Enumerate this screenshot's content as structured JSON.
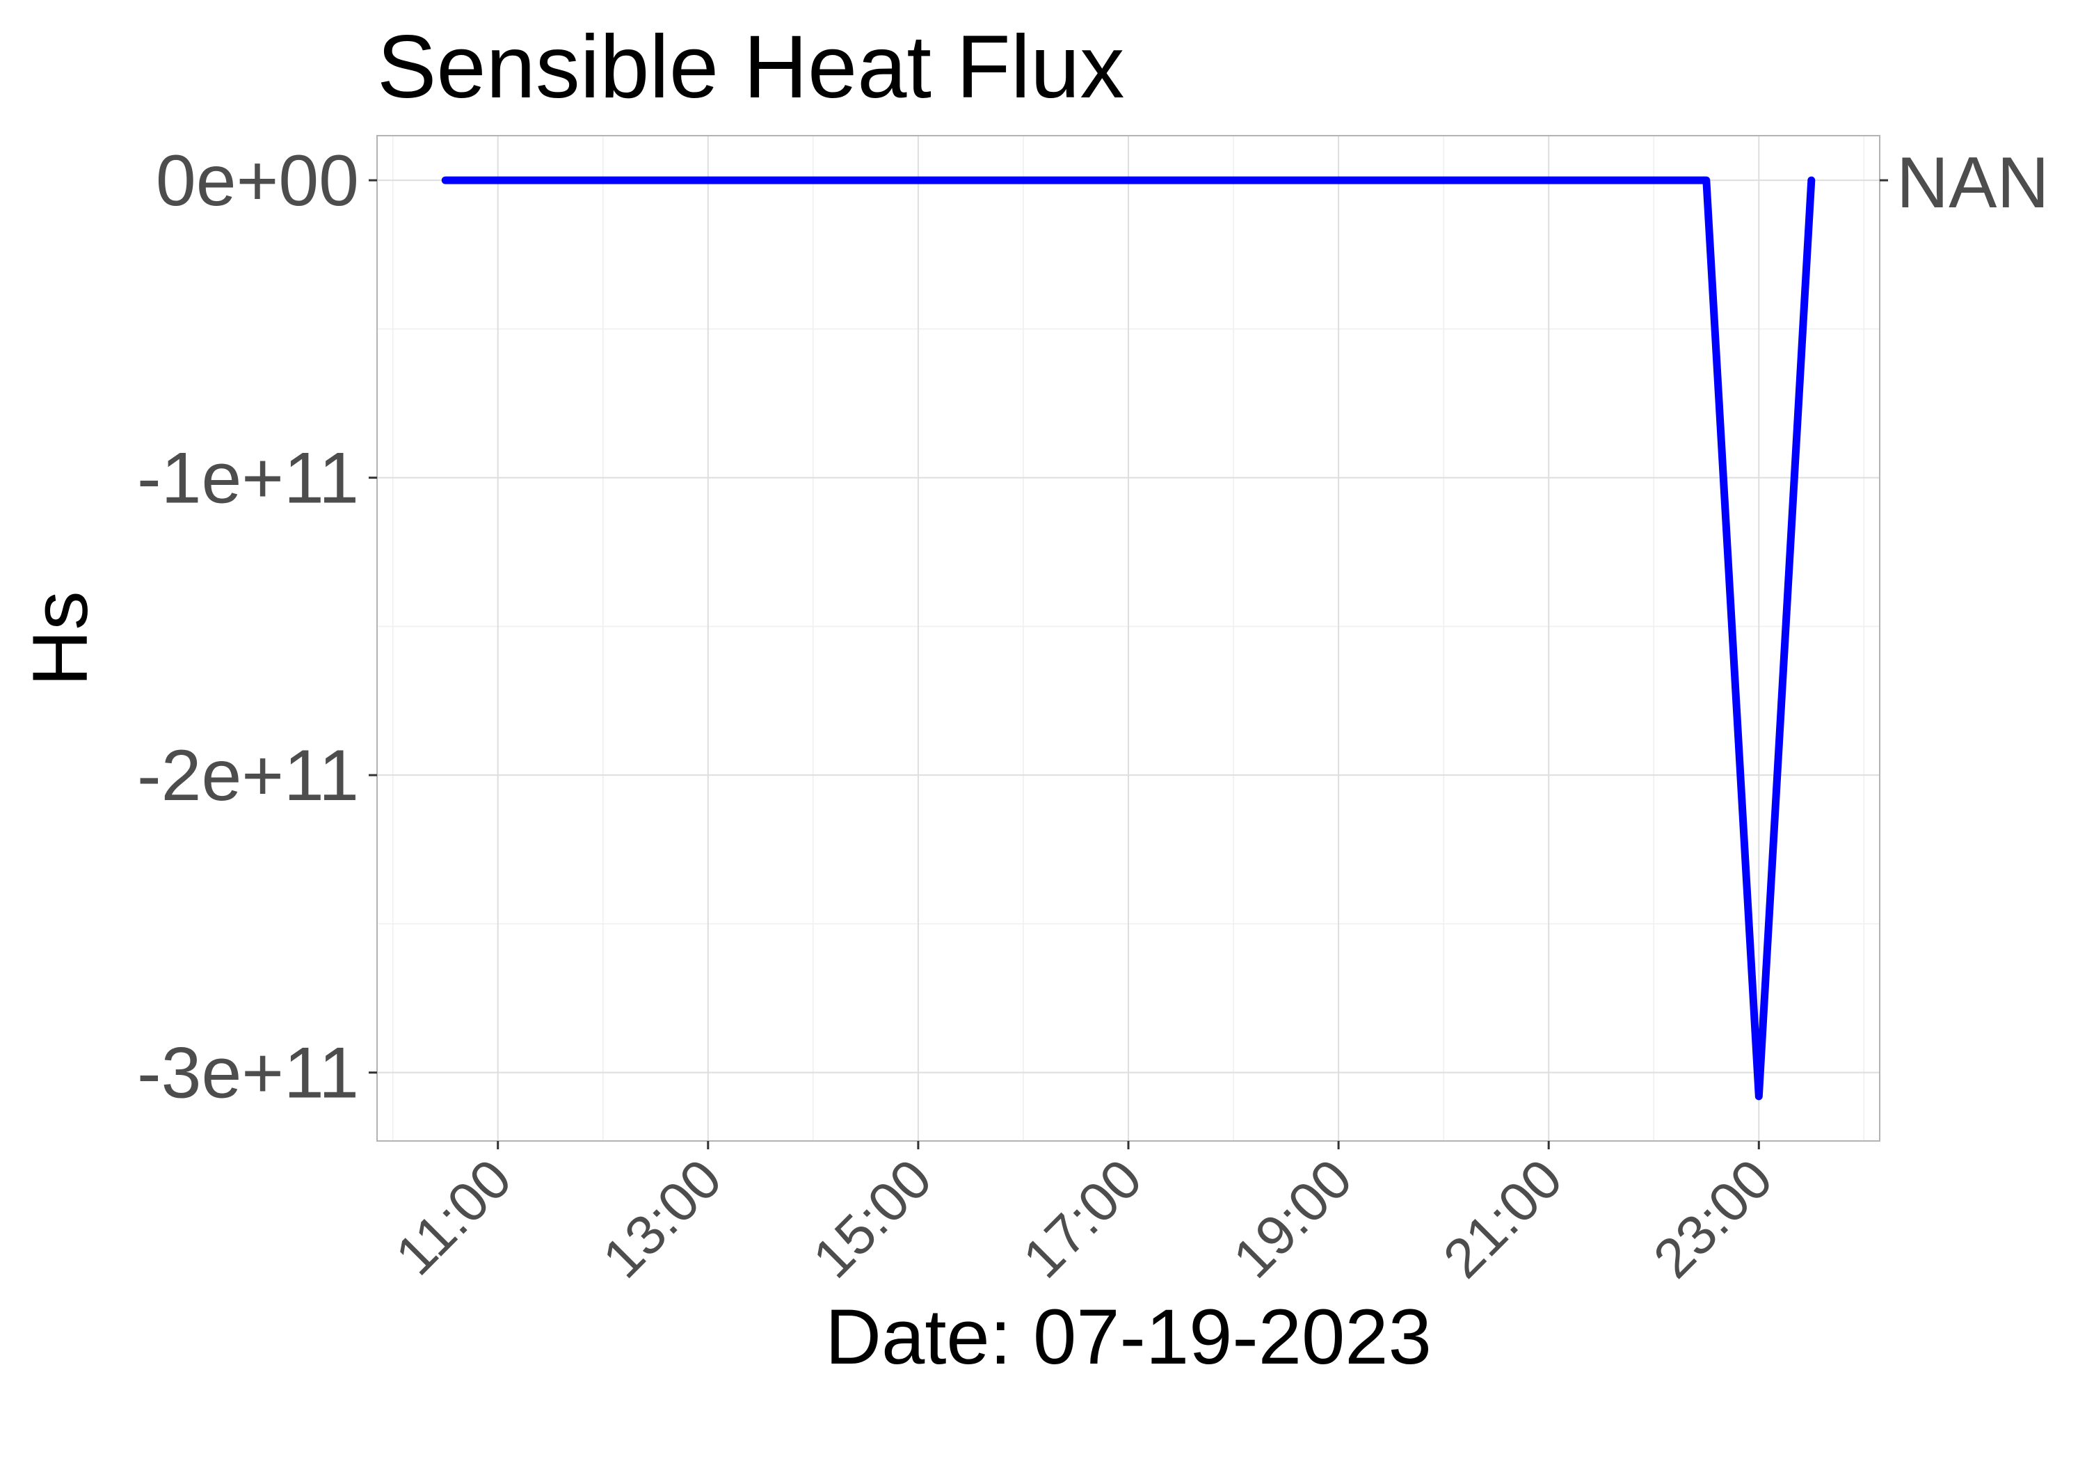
{
  "chart_data": {
    "type": "line",
    "title": "Sensible Heat Flux",
    "xlabel": "Date: 07-19-2023",
    "ylabel": "Hs",
    "x_ticks": [
      "11:00",
      "13:00",
      "15:00",
      "17:00",
      "19:00",
      "21:00",
      "23:00"
    ],
    "y_ticks": [
      "0e+00",
      "-1e+11",
      "-2e+11",
      "-3e+11"
    ],
    "y_tick_values": [
      0,
      -100000000000,
      -200000000000,
      -300000000000
    ],
    "right_label": "NAN",
    "xlim": [
      "09:51",
      "24:09"
    ],
    "ylim": [
      -323000000000,
      15000000000
    ],
    "grid": true,
    "series": [
      {
        "color": "#0000ff",
        "x": [
          "10:30",
          "22:30",
          "23:00",
          "23:30"
        ],
        "y": [
          0,
          0,
          -308000000000,
          0
        ]
      }
    ]
  }
}
